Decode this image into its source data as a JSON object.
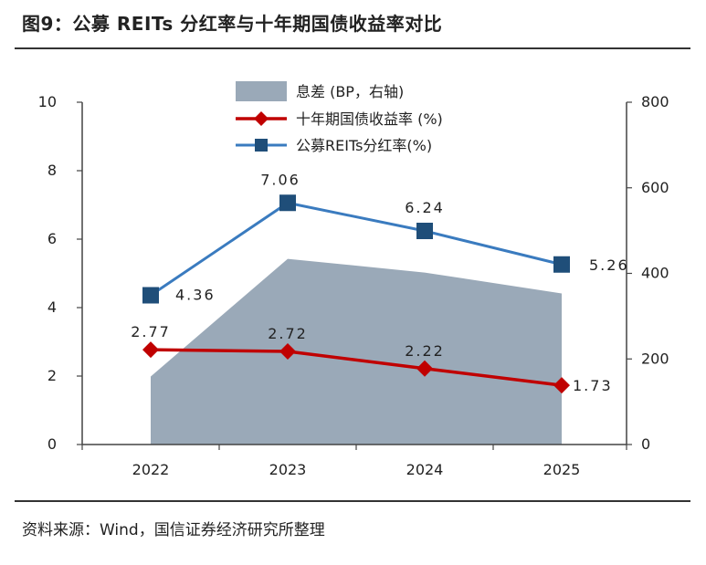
{
  "title": "图9：公募 REITs 分红率与十年期国债收益率对比",
  "source": "资料来源：Wind，国信证券经济研究所整理",
  "chart_data": {
    "type": "line",
    "categories": [
      "2022",
      "2023",
      "2024",
      "2025"
    ],
    "series": [
      {
        "name": "公募REITs分红率(%)",
        "values": [
          4.36,
          7.06,
          6.24,
          5.26
        ],
        "axis": "left",
        "color": "#1f4e79",
        "line_color": "#3a7bbf",
        "marker": "square"
      },
      {
        "name": "十年期国债收益率 (%)",
        "values": [
          2.77,
          2.72,
          2.22,
          1.73
        ],
        "axis": "left",
        "color": "#c00000",
        "marker": "diamond"
      },
      {
        "name": "息差 (BP，右轴)",
        "values": [
          159,
          434,
          402,
          353
        ],
        "axis": "right",
        "color": "#9aa9b8",
        "type": "area"
      }
    ],
    "left_axis": {
      "ylim": [
        0,
        10
      ],
      "ticks": [
        "0",
        "2",
        "4",
        "6",
        "8",
        "10"
      ]
    },
    "right_axis": {
      "ylim": [
        0,
        800
      ],
      "ticks": [
        "0",
        "200",
        "400",
        "600",
        "800"
      ]
    },
    "data_labels": {
      "reits": [
        "4.36",
        "7.06",
        "6.24",
        "5.26"
      ],
      "bond": [
        "2.77",
        "2.72",
        "2.22",
        "1.73"
      ]
    },
    "legend": {
      "position": "top-center",
      "entries": [
        "息差 (BP，右轴)",
        "十年期国债收益率 (%)",
        "公募REITs分红率(%)"
      ]
    },
    "grid": false
  }
}
